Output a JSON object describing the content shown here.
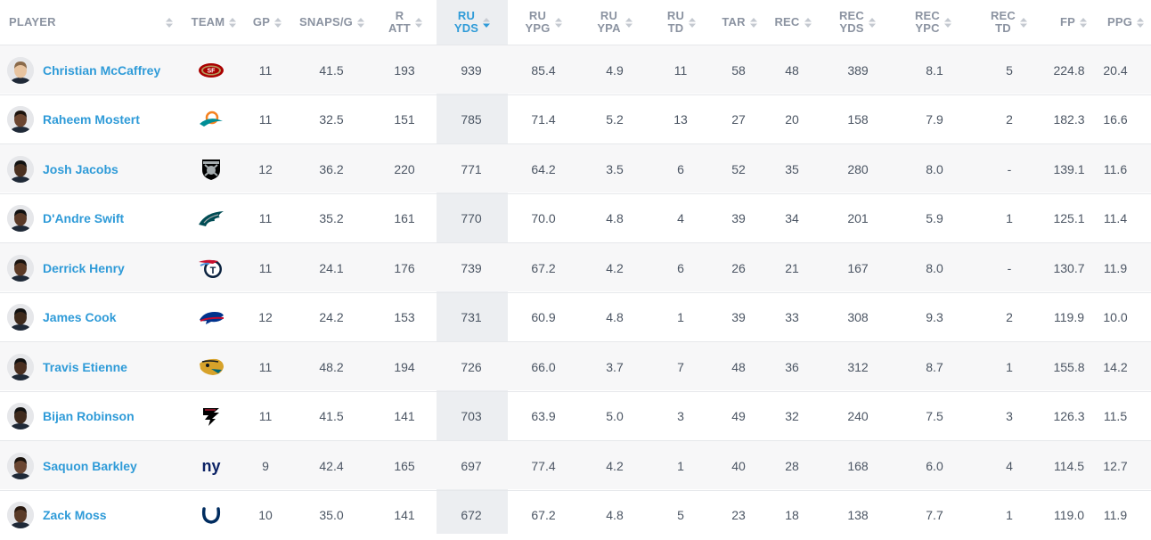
{
  "columns": [
    {
      "key": "player",
      "label": "PLAYER",
      "active": false
    },
    {
      "key": "team",
      "label": "TEAM",
      "active": false
    },
    {
      "key": "gp",
      "label": "GP",
      "active": false
    },
    {
      "key": "snaps",
      "label": "SNAPS/G",
      "active": false
    },
    {
      "key": "ratt",
      "label": "R\nATT",
      "active": false
    },
    {
      "key": "ruyds",
      "label": "RU\nYDS",
      "active": true
    },
    {
      "key": "ruypg",
      "label": "RU\nYPG",
      "active": false
    },
    {
      "key": "ruypa",
      "label": "RU\nYPA",
      "active": false
    },
    {
      "key": "rutd",
      "label": "RU\nTD",
      "active": false
    },
    {
      "key": "tar",
      "label": "TAR",
      "active": false
    },
    {
      "key": "rec",
      "label": "REC",
      "active": false
    },
    {
      "key": "recyds",
      "label": "REC\nYDS",
      "active": false
    },
    {
      "key": "recypc",
      "label": "REC\nYPC",
      "active": false
    },
    {
      "key": "rectd",
      "label": "REC\nTD",
      "active": false
    },
    {
      "key": "fp",
      "label": "FP",
      "active": false
    },
    {
      "key": "ppg",
      "label": "PPG",
      "active": false
    }
  ],
  "colors": {
    "accent": "#2f9bd8",
    "header_text": "#8b93a1",
    "body_text": "#4b5563",
    "active_col_bg": "#eceef1",
    "alt_row_bg": "#f7f7f8"
  },
  "rows": [
    {
      "player": "Christian McCaffrey",
      "team": "san-francisco-49ers-logo",
      "gp": "11",
      "snaps": "41.5",
      "ratt": "193",
      "ruyds": "939",
      "ruypg": "85.4",
      "ruypa": "4.9",
      "rutd": "11",
      "tar": "58",
      "rec": "48",
      "recyds": "389",
      "recypc": "8.1",
      "rectd": "5",
      "fp": "224.8",
      "ppg": "20.4"
    },
    {
      "player": "Raheem Mostert",
      "team": "miami-dolphins-logo",
      "gp": "11",
      "snaps": "32.5",
      "ratt": "151",
      "ruyds": "785",
      "ruypg": "71.4",
      "ruypa": "5.2",
      "rutd": "13",
      "tar": "27",
      "rec": "20",
      "recyds": "158",
      "recypc": "7.9",
      "rectd": "2",
      "fp": "182.3",
      "ppg": "16.6"
    },
    {
      "player": "Josh Jacobs",
      "team": "las-vegas-raiders-logo",
      "gp": "12",
      "snaps": "36.2",
      "ratt": "220",
      "ruyds": "771",
      "ruypg": "64.2",
      "ruypa": "3.5",
      "rutd": "6",
      "tar": "52",
      "rec": "35",
      "recyds": "280",
      "recypc": "8.0",
      "rectd": "-",
      "fp": "139.1",
      "ppg": "11.6"
    },
    {
      "player": "D'Andre Swift",
      "team": "philadelphia-eagles-logo",
      "gp": "11",
      "snaps": "35.2",
      "ratt": "161",
      "ruyds": "770",
      "ruypg": "70.0",
      "ruypa": "4.8",
      "rutd": "4",
      "tar": "39",
      "rec": "34",
      "recyds": "201",
      "recypc": "5.9",
      "rectd": "1",
      "fp": "125.1",
      "ppg": "11.4"
    },
    {
      "player": "Derrick Henry",
      "team": "tennessee-titans-logo",
      "gp": "11",
      "snaps": "24.1",
      "ratt": "176",
      "ruyds": "739",
      "ruypg": "67.2",
      "ruypa": "4.2",
      "rutd": "6",
      "tar": "26",
      "rec": "21",
      "recyds": "167",
      "recypc": "8.0",
      "rectd": "-",
      "fp": "130.7",
      "ppg": "11.9"
    },
    {
      "player": "James Cook",
      "team": "buffalo-bills-logo",
      "gp": "12",
      "snaps": "24.2",
      "ratt": "153",
      "ruyds": "731",
      "ruypg": "60.9",
      "ruypa": "4.8",
      "rutd": "1",
      "tar": "39",
      "rec": "33",
      "recyds": "308",
      "recypc": "9.3",
      "rectd": "2",
      "fp": "119.9",
      "ppg": "10.0"
    },
    {
      "player": "Travis Etienne",
      "team": "jacksonville-jaguars-logo",
      "gp": "11",
      "snaps": "48.2",
      "ratt": "194",
      "ruyds": "726",
      "ruypg": "66.0",
      "ruypa": "3.7",
      "rutd": "7",
      "tar": "48",
      "rec": "36",
      "recyds": "312",
      "recypc": "8.7",
      "rectd": "1",
      "fp": "155.8",
      "ppg": "14.2"
    },
    {
      "player": "Bijan Robinson",
      "team": "atlanta-falcons-logo",
      "gp": "11",
      "snaps": "41.5",
      "ratt": "141",
      "ruyds": "703",
      "ruypg": "63.9",
      "ruypa": "5.0",
      "rutd": "3",
      "tar": "49",
      "rec": "32",
      "recyds": "240",
      "recypc": "7.5",
      "rectd": "3",
      "fp": "126.3",
      "ppg": "11.5"
    },
    {
      "player": "Saquon Barkley",
      "team": "new-york-giants-logo",
      "gp": "9",
      "snaps": "42.4",
      "ratt": "165",
      "ruyds": "697",
      "ruypg": "77.4",
      "ruypa": "4.2",
      "rutd": "1",
      "tar": "40",
      "rec": "28",
      "recyds": "168",
      "recypc": "6.0",
      "rectd": "4",
      "fp": "114.5",
      "ppg": "12.7"
    },
    {
      "player": "Zack Moss",
      "team": "indianapolis-colts-logo",
      "gp": "10",
      "snaps": "35.0",
      "ratt": "141",
      "ruyds": "672",
      "ruypg": "67.2",
      "ruypa": "4.8",
      "rutd": "5",
      "tar": "23",
      "rec": "18",
      "recyds": "138",
      "recypc": "7.7",
      "rectd": "1",
      "fp": "119.0",
      "ppg": "11.9"
    }
  ]
}
